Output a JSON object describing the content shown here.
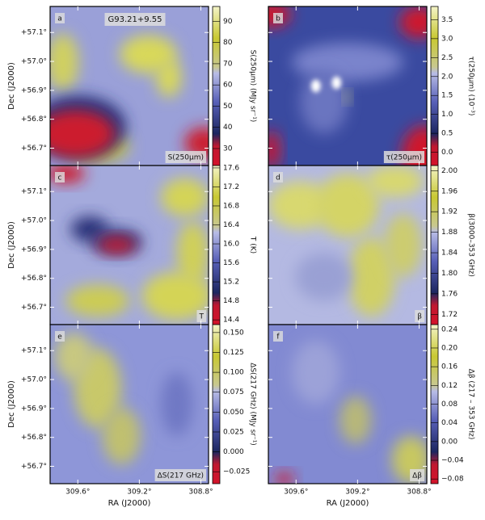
{
  "title": "G93.21+9.55",
  "dec_label": "Dec (J2000)",
  "ra_label": "RA (J2000)",
  "dec_lim": [
    56.64,
    57.19
  ],
  "ra_lim": [
    309.78,
    308.75
  ],
  "dec_ticks": [
    {
      "value": 57.1,
      "label": "+57.1°"
    },
    {
      "value": 57.0,
      "label": "+57.0°"
    },
    {
      "value": 56.9,
      "label": "+56.9°"
    },
    {
      "value": 56.8,
      "label": "+56.8°"
    },
    {
      "value": 56.7,
      "label": "+56.7°"
    }
  ],
  "ra_ticks": [
    {
      "value": 309.6,
      "label": "309.6°"
    },
    {
      "value": 309.2,
      "label": "309.2°"
    },
    {
      "value": 308.8,
      "label": "308.8°"
    }
  ],
  "panels": [
    {
      "letter": "a",
      "tag": "S(250μm)",
      "colorbar": {
        "label": "S(250μm) (MJy sr⁻¹)",
        "lim": [
          22,
          97
        ],
        "ticks": [
          30,
          40,
          50,
          60,
          70,
          80,
          90
        ]
      }
    },
    {
      "letter": "b",
      "tag": "τ(250μm)",
      "colorbar": {
        "label": "τ(250μm) (10⁻³)",
        "lim": [
          -0.35,
          3.85
        ],
        "ticks": [
          {
            "value": 0,
            "label": "0.0"
          },
          0.5,
          {
            "value": 1,
            "label": "1.0"
          },
          1.5,
          {
            "value": 2,
            "label": "2.0"
          },
          2.5,
          {
            "value": 3,
            "label": "3.0"
          },
          3.5
        ]
      }
    },
    {
      "letter": "c",
      "tag": "T",
      "colorbar": {
        "label": "T (K)",
        "lim": [
          14.3,
          17.65
        ],
        "ticks": [
          14.4,
          14.8,
          15.2,
          15.6,
          {
            "value": 16,
            "label": "16.0"
          },
          16.4,
          16.8,
          17.2,
          17.6
        ]
      }
    },
    {
      "letter": "d",
      "tag": "β",
      "colorbar": {
        "label": "β(3000–353 GHz)",
        "lim": [
          1.7,
          2.01
        ],
        "ticks": [
          1.72,
          1.76,
          {
            "value": 1.8,
            "label": "1.80"
          },
          1.84,
          1.88,
          1.92,
          1.96,
          {
            "value": 2,
            "label": "2.00"
          }
        ]
      }
    },
    {
      "letter": "e",
      "tag": "ΔS(217 GHz)",
      "colorbar": {
        "label": "ΔS(217 GHz) (MJy sr⁻¹)",
        "lim": [
          -0.04,
          0.16
        ],
        "ticks": [
          {
            "value": -0.025,
            "label": "−0.025"
          },
          {
            "value": 0,
            "label": "0.000"
          },
          0.025,
          {
            "value": 0.05,
            "label": "0.050"
          },
          0.075,
          {
            "value": 0.1,
            "label": "0.100"
          },
          0.125,
          {
            "value": 0.15,
            "label": "0.150"
          }
        ]
      }
    },
    {
      "letter": "f",
      "tag": "Δβ",
      "colorbar": {
        "label": "Δβ (217 – 353 GHz)",
        "lim": [
          -0.09,
          0.25
        ],
        "ticks": [
          {
            "value": -0.08,
            "label": "−0.08"
          },
          {
            "value": -0.04,
            "label": "−0.04"
          },
          {
            "value": 0,
            "label": "0.00"
          },
          0.04,
          0.08,
          0.12,
          0.16,
          {
            "value": 0.2,
            "label": "0.20"
          },
          0.24
        ]
      }
    }
  ]
}
